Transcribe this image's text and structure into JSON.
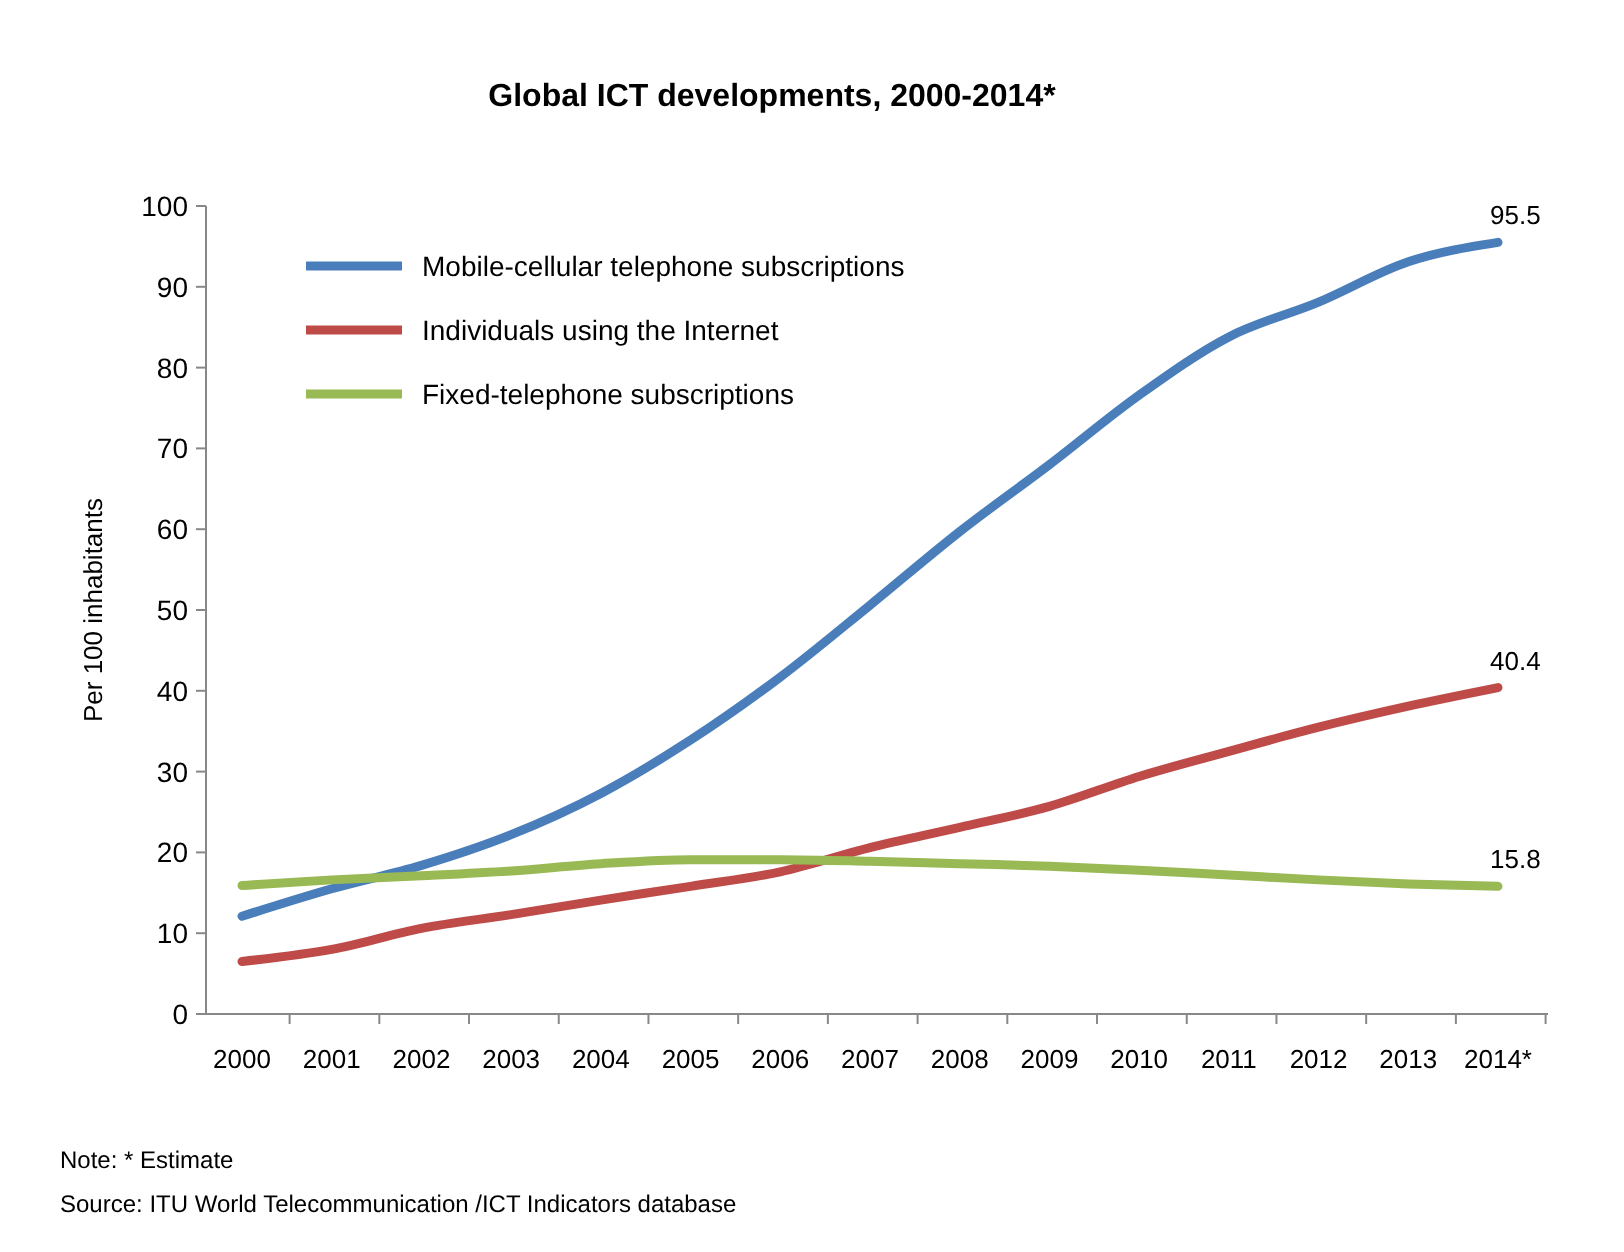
{
  "chart_data": {
    "type": "line",
    "title": "Global ICT developments, 2000-2014*",
    "ylabel": "Per 100 inhabitants",
    "categories": [
      "2000",
      "2001",
      "2002",
      "2003",
      "2004",
      "2005",
      "2006",
      "2007",
      "2008",
      "2009",
      "2010",
      "2011",
      "2012",
      "2013",
      "2014*"
    ],
    "series": [
      {
        "name": "Mobile-cellular telephone subscriptions",
        "color": "#4a7ebb",
        "values": [
          12.1,
          15.5,
          18.4,
          22.2,
          27.3,
          33.9,
          41.7,
          50.6,
          59.7,
          68.0,
          76.6,
          83.8,
          88.1,
          93.1,
          95.5
        ],
        "value_labels": [
          null,
          null,
          null,
          null,
          null,
          null,
          null,
          null,
          null,
          null,
          null,
          null,
          null,
          null,
          "95.5"
        ]
      },
      {
        "name": "Individuals using the Internet",
        "color": "#be4b48",
        "values": [
          6.5,
          8.0,
          10.6,
          12.3,
          14.1,
          15.8,
          17.6,
          20.6,
          23.1,
          25.7,
          29.4,
          32.5,
          35.5,
          38.1,
          40.4
        ],
        "value_labels": [
          null,
          null,
          null,
          null,
          null,
          null,
          null,
          null,
          null,
          null,
          null,
          null,
          null,
          null,
          "40.4"
        ]
      },
      {
        "name": "Fixed-telephone subscriptions",
        "color": "#98b954",
        "values": [
          15.9,
          16.6,
          17.1,
          17.7,
          18.6,
          19.1,
          19.1,
          18.9,
          18.6,
          18.3,
          17.8,
          17.2,
          16.6,
          16.1,
          15.8
        ],
        "value_labels": [
          null,
          null,
          null,
          null,
          null,
          null,
          null,
          null,
          null,
          null,
          null,
          null,
          null,
          null,
          "15.8"
        ]
      }
    ],
    "ylim": [
      0,
      100
    ],
    "yticks": [
      0,
      10,
      20,
      30,
      40,
      50,
      60,
      70,
      80,
      90,
      100
    ],
    "grid": false,
    "legend": "top left",
    "marker": "none",
    "line_style": "solid",
    "annotations": [
      "Note: * Estimate",
      "Source:  ITU World Telecommunication /ICT Indicators database"
    ]
  }
}
